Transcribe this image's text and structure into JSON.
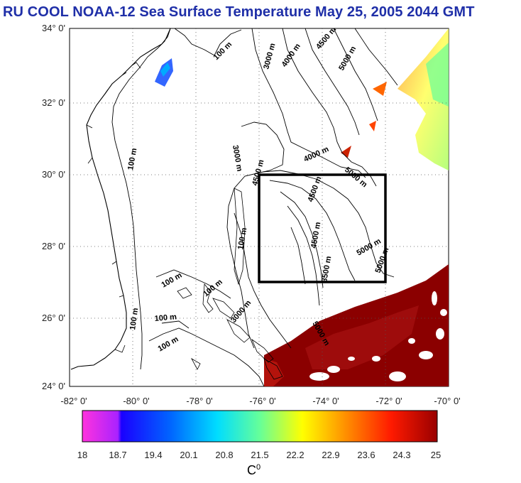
{
  "title": "RU COOL  NOAA-12 Sea Surface Temperature May 25, 2005 2044 GMT",
  "map": {
    "lat_ticks": [
      "34° 0'",
      "32° 0'",
      "30° 0'",
      "28° 0'",
      "26° 0'",
      "24° 0'"
    ],
    "lon_ticks": [
      "-82° 0'",
      "-80° 0'",
      "-78° 0'",
      "-76° 0'",
      "-74° 0'",
      "-72° 0'",
      "-70° 0'"
    ],
    "lat_range": [
      24,
      34
    ],
    "lon_range": [
      -82,
      -70
    ],
    "grid": true,
    "study_box": {
      "lon": [
        -76,
        -72
      ],
      "lat": [
        27,
        30
      ]
    },
    "contour_labels": [
      "100 m",
      "3000 m",
      "4000 m",
      "4500 m",
      "5000 m",
      "100 m",
      "100 m",
      "3000 m",
      "4500 m",
      "4000 m",
      "4500 m",
      "5000 m",
      "4500 m",
      "5000 m",
      "3500 m",
      "5000 m",
      "100 m",
      "100 m",
      "100 m",
      "100 m",
      "100 m",
      "3000 m",
      "5000 m"
    ]
  },
  "colorbar": {
    "tick_labels": [
      "18",
      "18.7",
      "19.4",
      "20.1",
      "20.8",
      "21.5",
      "22.2",
      "22.9",
      "23.6",
      "24.3",
      "25"
    ],
    "unit_label": "C",
    "unit_superscript": "0",
    "colors": [
      "#ff00ff",
      "#1a00ff",
      "#0088ff",
      "#00ffff",
      "#88ff88",
      "#ffff00",
      "#ff8800",
      "#ff2200",
      "#aa0000"
    ]
  }
}
